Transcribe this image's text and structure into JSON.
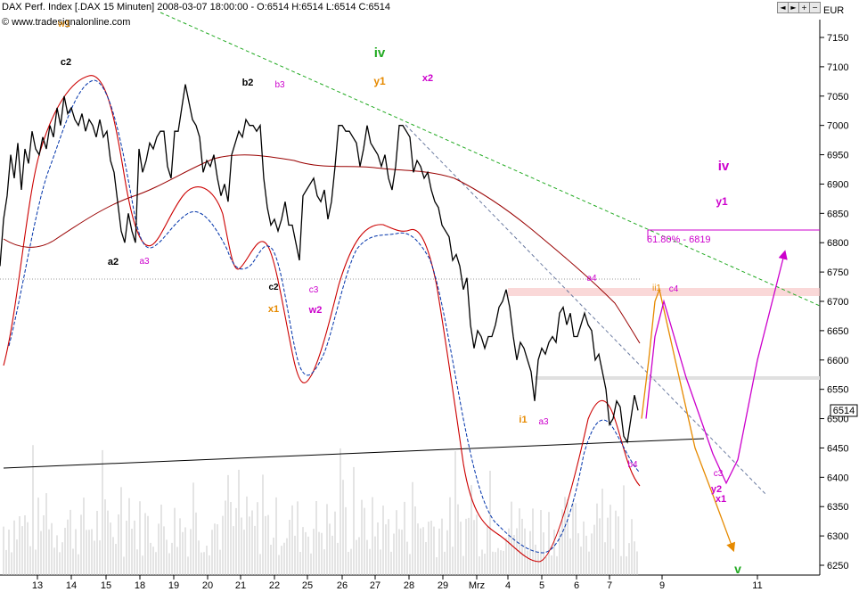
{
  "header": {
    "title": "DAX Perf. Index [.DAX 15 Minuten] 2008-03-07 18:00:00 - O:6514 H:6514 L:6514 C:6514",
    "website": "www.tradesignalonline.com",
    "currency": "EUR",
    "last_price": "6514",
    "toolbar_icons": [
      "arrow-left-icon",
      "arrow-right-icon",
      "zoom-in-icon",
      "zoom-out-icon",
      "restore-icon",
      "close-icon"
    ]
  },
  "colors": {
    "price": "#000000",
    "upper_band": "#cc0000",
    "lower_band": "#0033aa",
    "green_trend": "#22aa22",
    "magenta": "#cc00cc",
    "orange": "#e68a00"
  },
  "chart_data": {
    "type": "line",
    "instrument": "DAX Perf. Index",
    "interval": "15 Minuten",
    "ylim": [
      6228,
      7182
    ],
    "y_ticks": [
      6250,
      6300,
      6350,
      6400,
      6450,
      6500,
      6550,
      6600,
      6650,
      6700,
      6750,
      6800,
      6850,
      6900,
      6950,
      7000,
      7050,
      7100,
      7150
    ],
    "x_ticks": [
      "13",
      "14",
      "15",
      "18",
      "19",
      "20",
      "21",
      "22",
      "25",
      "26",
      "27",
      "28",
      "29",
      "Mrz",
      "4",
      "5",
      "6",
      "7",
      "9",
      "11"
    ],
    "fib_label": "61.80% - 6819",
    "wave_labels": [
      {
        "text": "w1",
        "color": "#e68a00"
      },
      {
        "text": "c2",
        "color": "#000000"
      },
      {
        "text": "a2",
        "color": "#000000"
      },
      {
        "text": "a3",
        "color": "#cc00cc"
      },
      {
        "text": "b2",
        "color": "#000000"
      },
      {
        "text": "b3",
        "color": "#cc00cc"
      },
      {
        "text": "c2",
        "color": "#000000"
      },
      {
        "text": "x1",
        "color": "#e68a00"
      },
      {
        "text": "c3",
        "color": "#cc00cc"
      },
      {
        "text": "w2",
        "color": "#cc00cc"
      },
      {
        "text": "iv",
        "color": "#22aa22"
      },
      {
        "text": "y1",
        "color": "#e68a00"
      },
      {
        "text": "x2",
        "color": "#cc00cc"
      },
      {
        "text": "i1",
        "color": "#e68a00"
      },
      {
        "text": "a3",
        "color": "#cc00cc"
      },
      {
        "text": "a4",
        "color": "#cc00cc"
      },
      {
        "text": "b4",
        "color": "#cc00cc"
      },
      {
        "text": "ii1",
        "color": "#e68a00"
      },
      {
        "text": "c4",
        "color": "#cc00cc"
      },
      {
        "text": "iv",
        "color": "#cc00cc"
      },
      {
        "text": "y1",
        "color": "#cc00cc"
      },
      {
        "text": "c3",
        "color": "#cc00cc"
      },
      {
        "text": "y2",
        "color": "#cc00cc"
      },
      {
        "text": "x1",
        "color": "#cc00cc"
      },
      {
        "text": "v",
        "color": "#22aa22"
      }
    ],
    "price_path": [
      [
        0,
        6760
      ],
      [
        4,
        6840
      ],
      [
        8,
        6880
      ],
      [
        12,
        6950
      ],
      [
        16,
        6910
      ],
      [
        20,
        6970
      ],
      [
        24,
        6890
      ],
      [
        28,
        6960
      ],
      [
        32,
        6935
      ],
      [
        36,
        6990
      ],
      [
        40,
        6960
      ],
      [
        44,
        6950
      ],
      [
        48,
        6980
      ],
      [
        52,
        6960
      ],
      [
        56,
        7000
      ],
      [
        60,
        6980
      ],
      [
        64,
        7030
      ],
      [
        68,
        7000
      ],
      [
        72,
        7050
      ],
      [
        76,
        7020
      ],
      [
        80,
        7030
      ],
      [
        84,
        7010
      ],
      [
        88,
        7000
      ],
      [
        92,
        7020
      ],
      [
        96,
        6990
      ],
      [
        100,
        7010
      ],
      [
        104,
        7000
      ],
      [
        108,
        6980
      ],
      [
        112,
        7010
      ],
      [
        116,
        6980
      ],
      [
        120,
        6990
      ],
      [
        124,
        6940
      ],
      [
        128,
        6920
      ],
      [
        132,
        6870
      ],
      [
        136,
        6820
      ],
      [
        140,
        6800
      ],
      [
        144,
        6850
      ],
      [
        148,
        6820
      ],
      [
        152,
        6800
      ],
      [
        156,
        6960
      ],
      [
        160,
        6920
      ],
      [
        164,
        6940
      ],
      [
        168,
        6970
      ],
      [
        172,
        6960
      ],
      [
        176,
        6980
      ],
      [
        180,
        6990
      ],
      [
        184,
        6990
      ],
      [
        188,
        6930
      ],
      [
        192,
        6910
      ],
      [
        196,
        6990
      ],
      [
        200,
        6990
      ],
      [
        204,
        7030
      ],
      [
        208,
        7070
      ],
      [
        212,
        7040
      ],
      [
        216,
        7010
      ],
      [
        220,
        7000
      ],
      [
        224,
        6980
      ],
      [
        228,
        6920
      ],
      [
        232,
        6940
      ],
      [
        236,
        6930
      ],
      [
        240,
        6950
      ],
      [
        244,
        6910
      ],
      [
        248,
        6880
      ],
      [
        252,
        6900
      ],
      [
        256,
        6870
      ],
      [
        260,
        6950
      ],
      [
        264,
        6970
      ],
      [
        268,
        6990
      ],
      [
        272,
        6980
      ],
      [
        276,
        7010
      ],
      [
        280,
        7000
      ],
      [
        284,
        7000
      ],
      [
        288,
        6990
      ],
      [
        292,
        7000
      ],
      [
        296,
        6910
      ],
      [
        300,
        6860
      ],
      [
        304,
        6830
      ],
      [
        308,
        6840
      ],
      [
        312,
        6820
      ],
      [
        316,
        6840
      ],
      [
        320,
        6870
      ],
      [
        324,
        6830
      ],
      [
        328,
        6830
      ],
      [
        332,
        6800
      ],
      [
        336,
        6770
      ],
      [
        340,
        6880
      ],
      [
        344,
        6890
      ],
      [
        348,
        6900
      ],
      [
        352,
        6910
      ],
      [
        356,
        6880
      ],
      [
        360,
        6870
      ],
      [
        364,
        6890
      ],
      [
        368,
        6840
      ],
      [
        372,
        6870
      ],
      [
        376,
        6930
      ],
      [
        380,
        7000
      ],
      [
        384,
        7000
      ],
      [
        388,
        6990
      ],
      [
        392,
        6990
      ],
      [
        396,
        6980
      ],
      [
        400,
        6970
      ],
      [
        404,
        6930
      ],
      [
        408,
        6960
      ],
      [
        412,
        7000
      ],
      [
        416,
        6970
      ],
      [
        420,
        6960
      ],
      [
        424,
        6950
      ],
      [
        428,
        6930
      ],
      [
        432,
        6950
      ],
      [
        436,
        6910
      ],
      [
        440,
        6890
      ],
      [
        444,
        6930
      ],
      [
        448,
        7000
      ],
      [
        452,
        7000
      ],
      [
        456,
        6990
      ],
      [
        460,
        6980
      ],
      [
        464,
        6920
      ],
      [
        468,
        6940
      ],
      [
        472,
        6930
      ],
      [
        476,
        6910
      ],
      [
        480,
        6920
      ],
      [
        484,
        6890
      ],
      [
        488,
        6870
      ],
      [
        492,
        6860
      ],
      [
        496,
        6830
      ],
      [
        500,
        6820
      ],
      [
        504,
        6810
      ],
      [
        508,
        6770
      ],
      [
        512,
        6780
      ],
      [
        516,
        6760
      ],
      [
        520,
        6720
      ],
      [
        524,
        6740
      ],
      [
        528,
        6660
      ],
      [
        532,
        6620
      ],
      [
        536,
        6650
      ],
      [
        540,
        6640
      ],
      [
        544,
        6620
      ],
      [
        548,
        6640
      ],
      [
        552,
        6640
      ],
      [
        556,
        6660
      ],
      [
        560,
        6690
      ],
      [
        564,
        6700
      ],
      [
        568,
        6720
      ],
      [
        572,
        6690
      ],
      [
        576,
        6640
      ],
      [
        580,
        6600
      ],
      [
        584,
        6630
      ],
      [
        588,
        6620
      ],
      [
        592,
        6600
      ],
      [
        596,
        6580
      ],
      [
        600,
        6530
      ],
      [
        604,
        6600
      ],
      [
        608,
        6620
      ],
      [
        612,
        6610
      ],
      [
        616,
        6630
      ],
      [
        620,
        6640
      ],
      [
        624,
        6630
      ],
      [
        628,
        6680
      ],
      [
        632,
        6690
      ],
      [
        636,
        6660
      ],
      [
        640,
        6680
      ],
      [
        644,
        6640
      ],
      [
        648,
        6640
      ],
      [
        652,
        6660
      ],
      [
        656,
        6680
      ],
      [
        660,
        6660
      ],
      [
        664,
        6650
      ],
      [
        668,
        6600
      ],
      [
        672,
        6610
      ],
      [
        676,
        6580
      ],
      [
        680,
        6550
      ],
      [
        684,
        6490
      ],
      [
        688,
        6500
      ],
      [
        692,
        6530
      ],
      [
        696,
        6520
      ],
      [
        700,
        6470
      ],
      [
        704,
        6460
      ],
      [
        708,
        6500
      ],
      [
        712,
        6540
      ],
      [
        716,
        6514
      ]
    ],
    "annotations": {
      "forecast_orange": [
        [
          720,
          6500
        ],
        [
          728,
          6600
        ],
        [
          735,
          6700
        ],
        [
          740,
          6720
        ],
        [
          780,
          6450
        ],
        [
          800,
          6370
        ],
        [
          822,
          6280
        ]
      ],
      "forecast_magenta": [
        [
          725,
          6500
        ],
        [
          735,
          6640
        ],
        [
          745,
          6700
        ],
        [
          770,
          6570
        ],
        [
          800,
          6440
        ],
        [
          815,
          6390
        ],
        [
          828,
          6430
        ],
        [
          850,
          6600
        ],
        [
          880,
          6780
        ]
      ]
    }
  }
}
